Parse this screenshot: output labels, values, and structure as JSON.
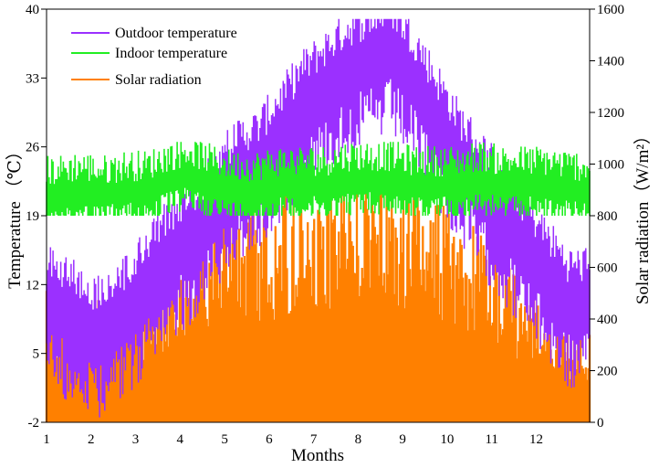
{
  "chart_data": {
    "type": "line",
    "xlabel": "Months",
    "ylabel_left": "Temperature （℃）",
    "ylabel_right": "Solar radiation（W/m²）",
    "x_ticks": [
      "1",
      "2",
      "3",
      "4",
      "5",
      "6",
      "7",
      "8",
      "9",
      "10",
      "11",
      "12"
    ],
    "y_left_ticks": [
      "40",
      "33",
      "26",
      "19",
      "12",
      "5",
      "-2"
    ],
    "y_right_ticks": [
      "1600",
      "1400",
      "1200",
      "1000",
      "800",
      "600",
      "400",
      "200",
      "0"
    ],
    "ylim_left": [
      -2,
      40
    ],
    "ylim_right": [
      0,
      1600
    ],
    "legend_position": "top-left",
    "series": [
      {
        "name": "Outdoor temperature",
        "axis": "left",
        "color": "#9b30ff",
        "x": [
          1,
          1.5,
          2,
          2.5,
          3,
          3.5,
          4,
          4.5,
          5,
          5.5,
          6,
          6.5,
          7,
          7.5,
          8,
          8.5,
          9,
          9.5,
          10,
          10.5,
          11,
          11.5,
          12,
          12.5
        ],
        "y": [
          10,
          8,
          7,
          9,
          12,
          15,
          17,
          20,
          23,
          24,
          27,
          30,
          32,
          34,
          35,
          36,
          33,
          29,
          25,
          22,
          19,
          16,
          13,
          10
        ]
      },
      {
        "name": "Indoor temperature",
        "axis": "left",
        "color": "#22ee22",
        "x": [
          1,
          1.5,
          2,
          2.5,
          3,
          3.5,
          4,
          4.5,
          5,
          5.5,
          6,
          6.5,
          7,
          7.5,
          8,
          8.5,
          9,
          9.5,
          10,
          10.5,
          11,
          11.5,
          12,
          12.5
        ],
        "y": [
          21.5,
          22,
          21.5,
          22,
          22,
          23,
          23.5,
          22.5,
          22,
          22,
          22.5,
          22.5,
          22.5,
          23,
          23,
          23,
          22.5,
          22.5,
          22.5,
          23,
          22.5,
          22.5,
          22.5,
          22
        ]
      },
      {
        "name": "Solar radiation",
        "axis": "right",
        "color": "#ff8000",
        "x": [
          1,
          1.5,
          2,
          2.5,
          3,
          3.5,
          4,
          4.5,
          5,
          5.5,
          6,
          6.5,
          7,
          7.5,
          8,
          8.5,
          9,
          9.5,
          10,
          10.5,
          11,
          11.5,
          12,
          12.5
        ],
        "y": [
          500,
          450,
          480,
          420,
          550,
          600,
          700,
          800,
          900,
          850,
          850,
          900,
          900,
          920,
          950,
          920,
          900,
          850,
          800,
          700,
          600,
          500,
          450,
          350
        ]
      }
    ]
  }
}
